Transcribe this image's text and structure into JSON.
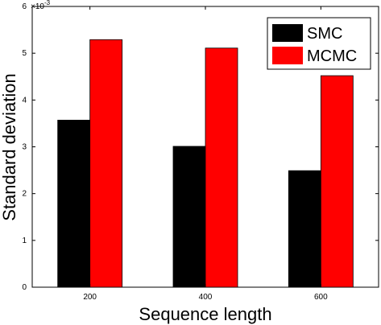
{
  "chart_data": {
    "type": "bar",
    "xlabel": "Sequence length",
    "ylabel": "Standard deviation",
    "y_exponent_label": "×10",
    "y_exponent_power": "-3",
    "categories": [
      "200",
      "400",
      "600"
    ],
    "series": [
      {
        "name": "SMC",
        "color": "#000000",
        "values": [
          3.57,
          3.01,
          2.49
        ]
      },
      {
        "name": "MCMC",
        "color": "#ff0000",
        "values": [
          5.29,
          5.11,
          4.52
        ]
      }
    ],
    "ylim": [
      0,
      6
    ],
    "yticks": [
      "0",
      "1",
      "2",
      "3",
      "4",
      "5",
      "6"
    ],
    "grid": false,
    "legend_position": "top-right"
  }
}
